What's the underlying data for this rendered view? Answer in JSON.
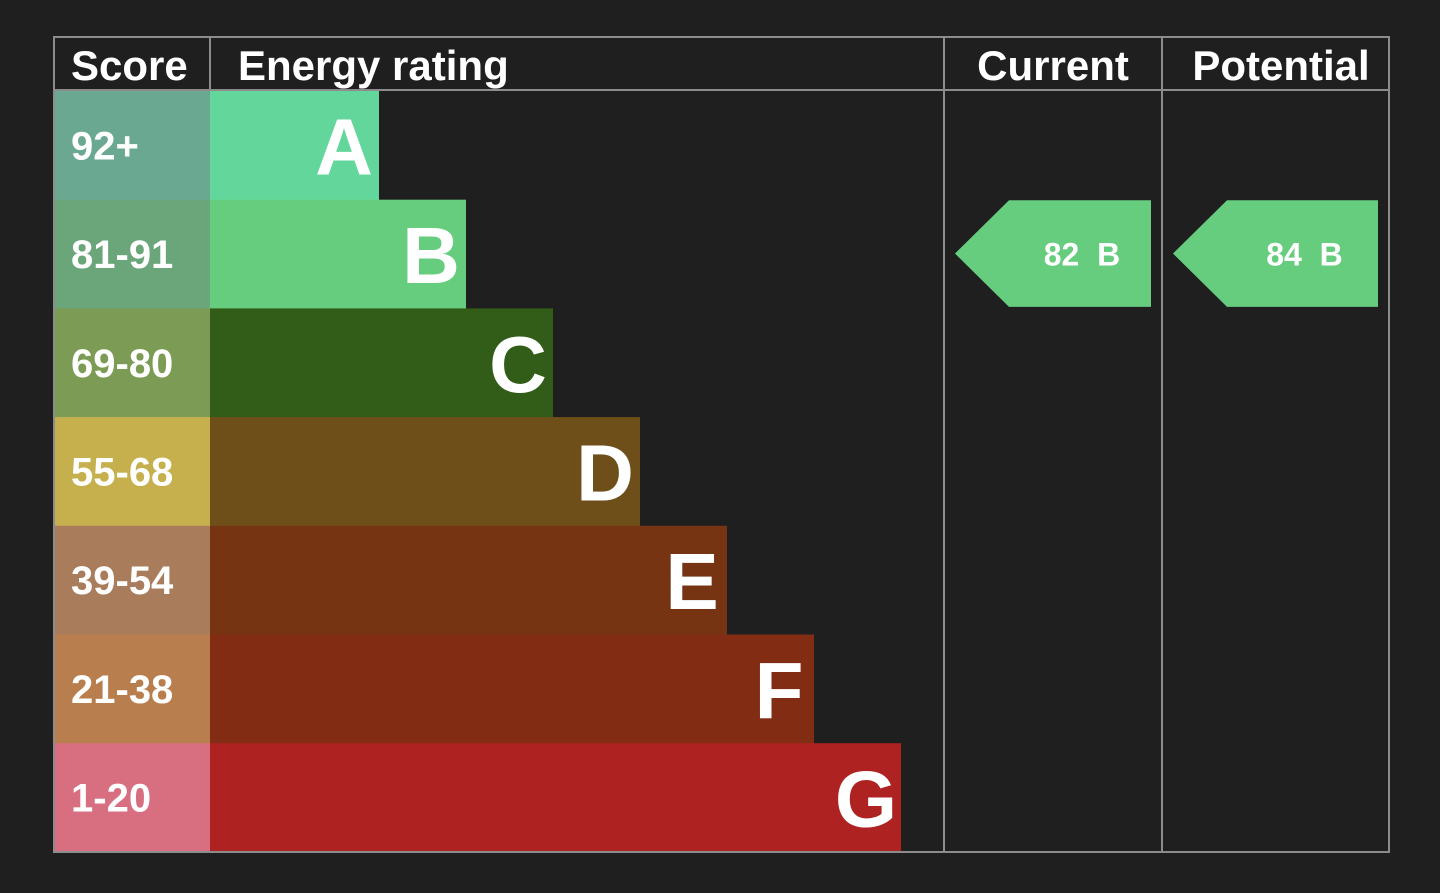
{
  "headers": {
    "score": "Score",
    "energy_rating": "Energy rating",
    "current": "Current",
    "potential": "Potential"
  },
  "chart_data": {
    "type": "bar",
    "categories": [
      "A",
      "B",
      "C",
      "D",
      "E",
      "F",
      "G"
    ],
    "score_ranges": [
      "92+",
      "81-91",
      "69-80",
      "55-68",
      "39-54",
      "21-38",
      "1-20"
    ],
    "bar_colors": [
      "#63d69b",
      "#66cd7e",
      "#325d18",
      "#6e4f1a",
      "#763413",
      "#822c13",
      "#ae2221"
    ],
    "score_cell_colors": [
      "#6aa892",
      "#6aa67a",
      "#7c9c55",
      "#c6b04e",
      "#a97c5c",
      "#b97e4e",
      "#d76f81"
    ],
    "current": {
      "value": 82,
      "band": "B",
      "label": "82  B",
      "color": "#66cd7e"
    },
    "potential": {
      "value": 84,
      "band": "B",
      "label": "84  B",
      "color": "#66cd7e"
    }
  }
}
